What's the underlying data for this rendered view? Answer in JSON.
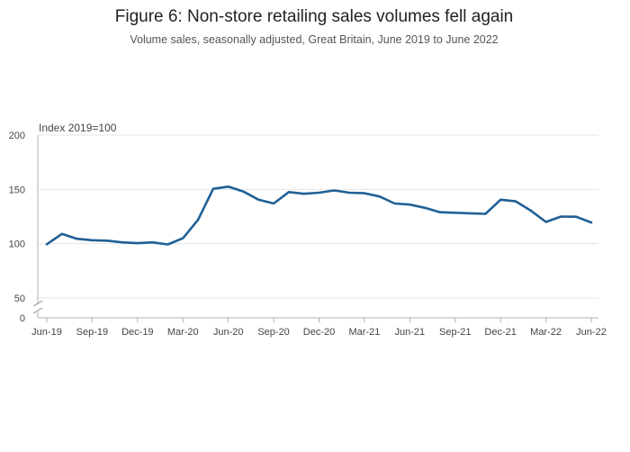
{
  "chart_data": {
    "type": "line",
    "title": "Figure 6: Non-store retailing sales volumes fell again",
    "subtitle": "Volume sales, seasonally adjusted, Great Britain, June 2019 to June 2022",
    "ylabel": "Index 2019=100",
    "xlabel": "",
    "y_ticks": [
      "0",
      "50",
      "100",
      "150",
      "200"
    ],
    "y_tick_values": [
      50,
      100,
      150,
      200
    ],
    "y_axis_break": true,
    "ylim": [
      50,
      200
    ],
    "grid": true,
    "line_color": "#206095",
    "x_tick_labels": [
      "Jun-19",
      "Sep-19",
      "Dec-19",
      "Mar-20",
      "Jun-20",
      "Sep-20",
      "Dec-20",
      "Mar-21",
      "Jun-21",
      "Sep-21",
      "Dec-21",
      "Mar-22",
      "Jun-22"
    ],
    "series": [
      {
        "values": [
          99.5,
          109,
          104.5,
          103.2,
          102.8,
          101.2,
          100.5,
          101.2,
          99.3,
          105,
          122,
          150.5,
          152.5,
          148,
          140.5,
          137,
          147.5,
          146,
          147,
          149,
          147,
          146.5,
          143.5,
          137,
          136,
          133,
          129,
          128.5,
          128,
          127.5,
          140.5,
          139,
          130.5,
          120,
          125,
          124.8,
          119.5
        ]
      }
    ]
  }
}
